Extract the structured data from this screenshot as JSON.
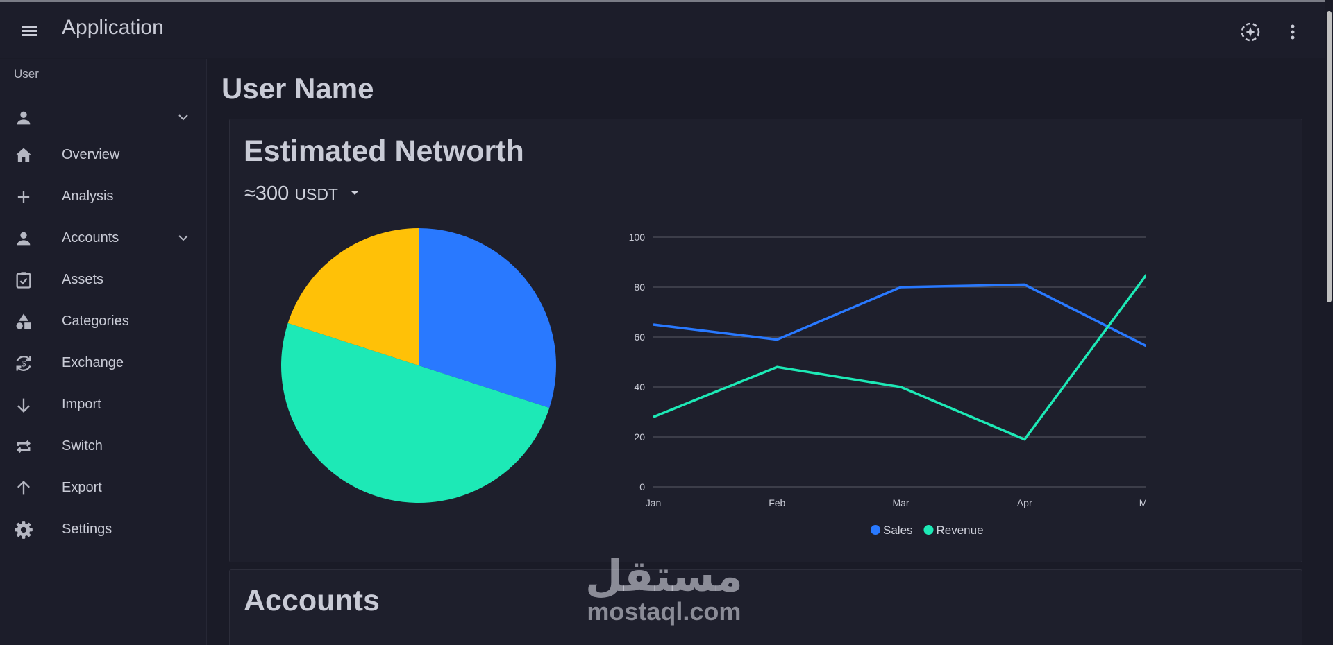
{
  "app": {
    "title": "Application"
  },
  "sidebar": {
    "section_label": "User",
    "items": [
      {
        "label": "",
        "icon": "person-icon",
        "expandable": true
      },
      {
        "label": "Overview",
        "icon": "home-icon"
      },
      {
        "label": "Analysis",
        "icon": "plus-icon"
      },
      {
        "label": "Accounts",
        "icon": "person-icon",
        "expandable": true
      },
      {
        "label": "Assets",
        "icon": "clipboard-check-icon"
      },
      {
        "label": "Categories",
        "icon": "shapes-icon"
      },
      {
        "label": "Exchange",
        "icon": "currency-exchange-icon"
      },
      {
        "label": "Import",
        "icon": "arrow-down-icon"
      },
      {
        "label": "Switch",
        "icon": "repeat-icon"
      },
      {
        "label": "Export",
        "icon": "arrow-up-icon"
      },
      {
        "label": "Settings",
        "icon": "gear-icon"
      }
    ]
  },
  "main": {
    "page_title": "User Name",
    "networth_card": {
      "title": "Estimated Networth",
      "amount": "≈300",
      "currency": "USDT"
    },
    "accounts_card": {
      "title": "Accounts"
    }
  },
  "watermark": {
    "arabic": "مستقل",
    "latin": "mostaql.com"
  },
  "colors": {
    "blue": "#2979ff",
    "teal": "#1de9b6",
    "yellow": "#ffc107",
    "background": "#1a1b27"
  },
  "chart_data": [
    {
      "type": "pie",
      "slices": [
        {
          "value": 30,
          "color": "#2979ff"
        },
        {
          "value": 50,
          "color": "#1de9b6"
        },
        {
          "value": 20,
          "color": "#ffc107"
        }
      ]
    },
    {
      "type": "line",
      "categories": [
        "Jan",
        "Feb",
        "Mar",
        "Apr",
        "May"
      ],
      "ylim": [
        0,
        100
      ],
      "yticks": [
        0,
        20,
        40,
        60,
        80,
        100
      ],
      "grid": true,
      "legend": "bottom",
      "series": [
        {
          "name": "Sales",
          "values": [
            65,
            59,
            80,
            81,
            56
          ],
          "color": "#2979ff"
        },
        {
          "name": "Revenue",
          "values": [
            28,
            48,
            40,
            19,
            86
          ],
          "color": "#1de9b6"
        }
      ]
    }
  ]
}
